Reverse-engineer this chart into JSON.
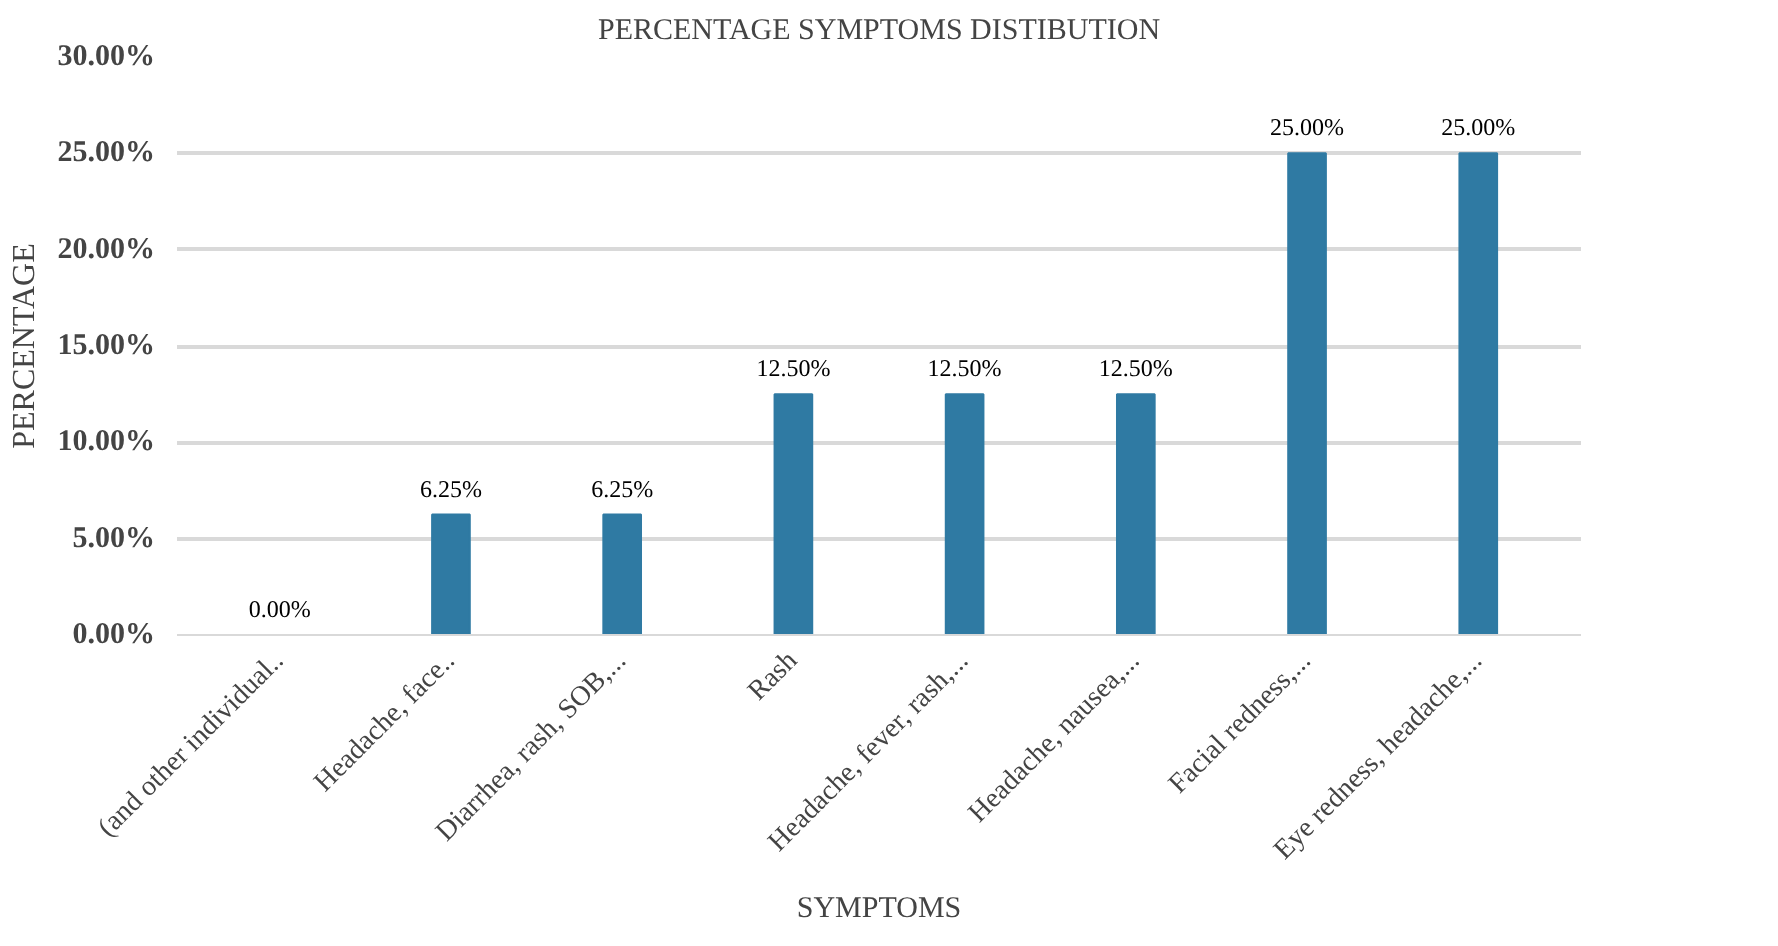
{
  "chart_data": {
    "type": "bar",
    "title": "PERCENTAGE SYMPTOMS DISTIBUTION",
    "xlabel": "SYMPTOMS",
    "ylabel": "PERCENTAGE",
    "categories": [
      "(and other individual..",
      "Headache, face..",
      "Diarrhea, rash, SOB,...",
      "Rash",
      "Headache, fever, rash,...",
      "Headache, nausea,...",
      "Facial redness,...",
      "Eye redness, headache,..."
    ],
    "values": [
      0,
      6.25,
      6.25,
      12.5,
      12.5,
      12.5,
      25,
      25
    ],
    "value_labels": [
      "0.00%",
      "6.25%",
      "6.25%",
      "12.50%",
      "12.50%",
      "12.50%",
      "25.00%",
      "25.00%"
    ],
    "color": "#2f7aa3",
    "ylim": [
      0,
      30
    ],
    "yticks": [
      {
        "value": 0,
        "label": "0.00%"
      },
      {
        "value": 5,
        "label": "5.00%"
      },
      {
        "value": 10,
        "label": "10.00%"
      },
      {
        "value": 15,
        "label": "15.00%"
      },
      {
        "value": 20,
        "label": "20.00%"
      },
      {
        "value": 25,
        "label": "25.00%"
      },
      {
        "value": 30,
        "label": "30.00%"
      }
    ],
    "grid": "y"
  }
}
